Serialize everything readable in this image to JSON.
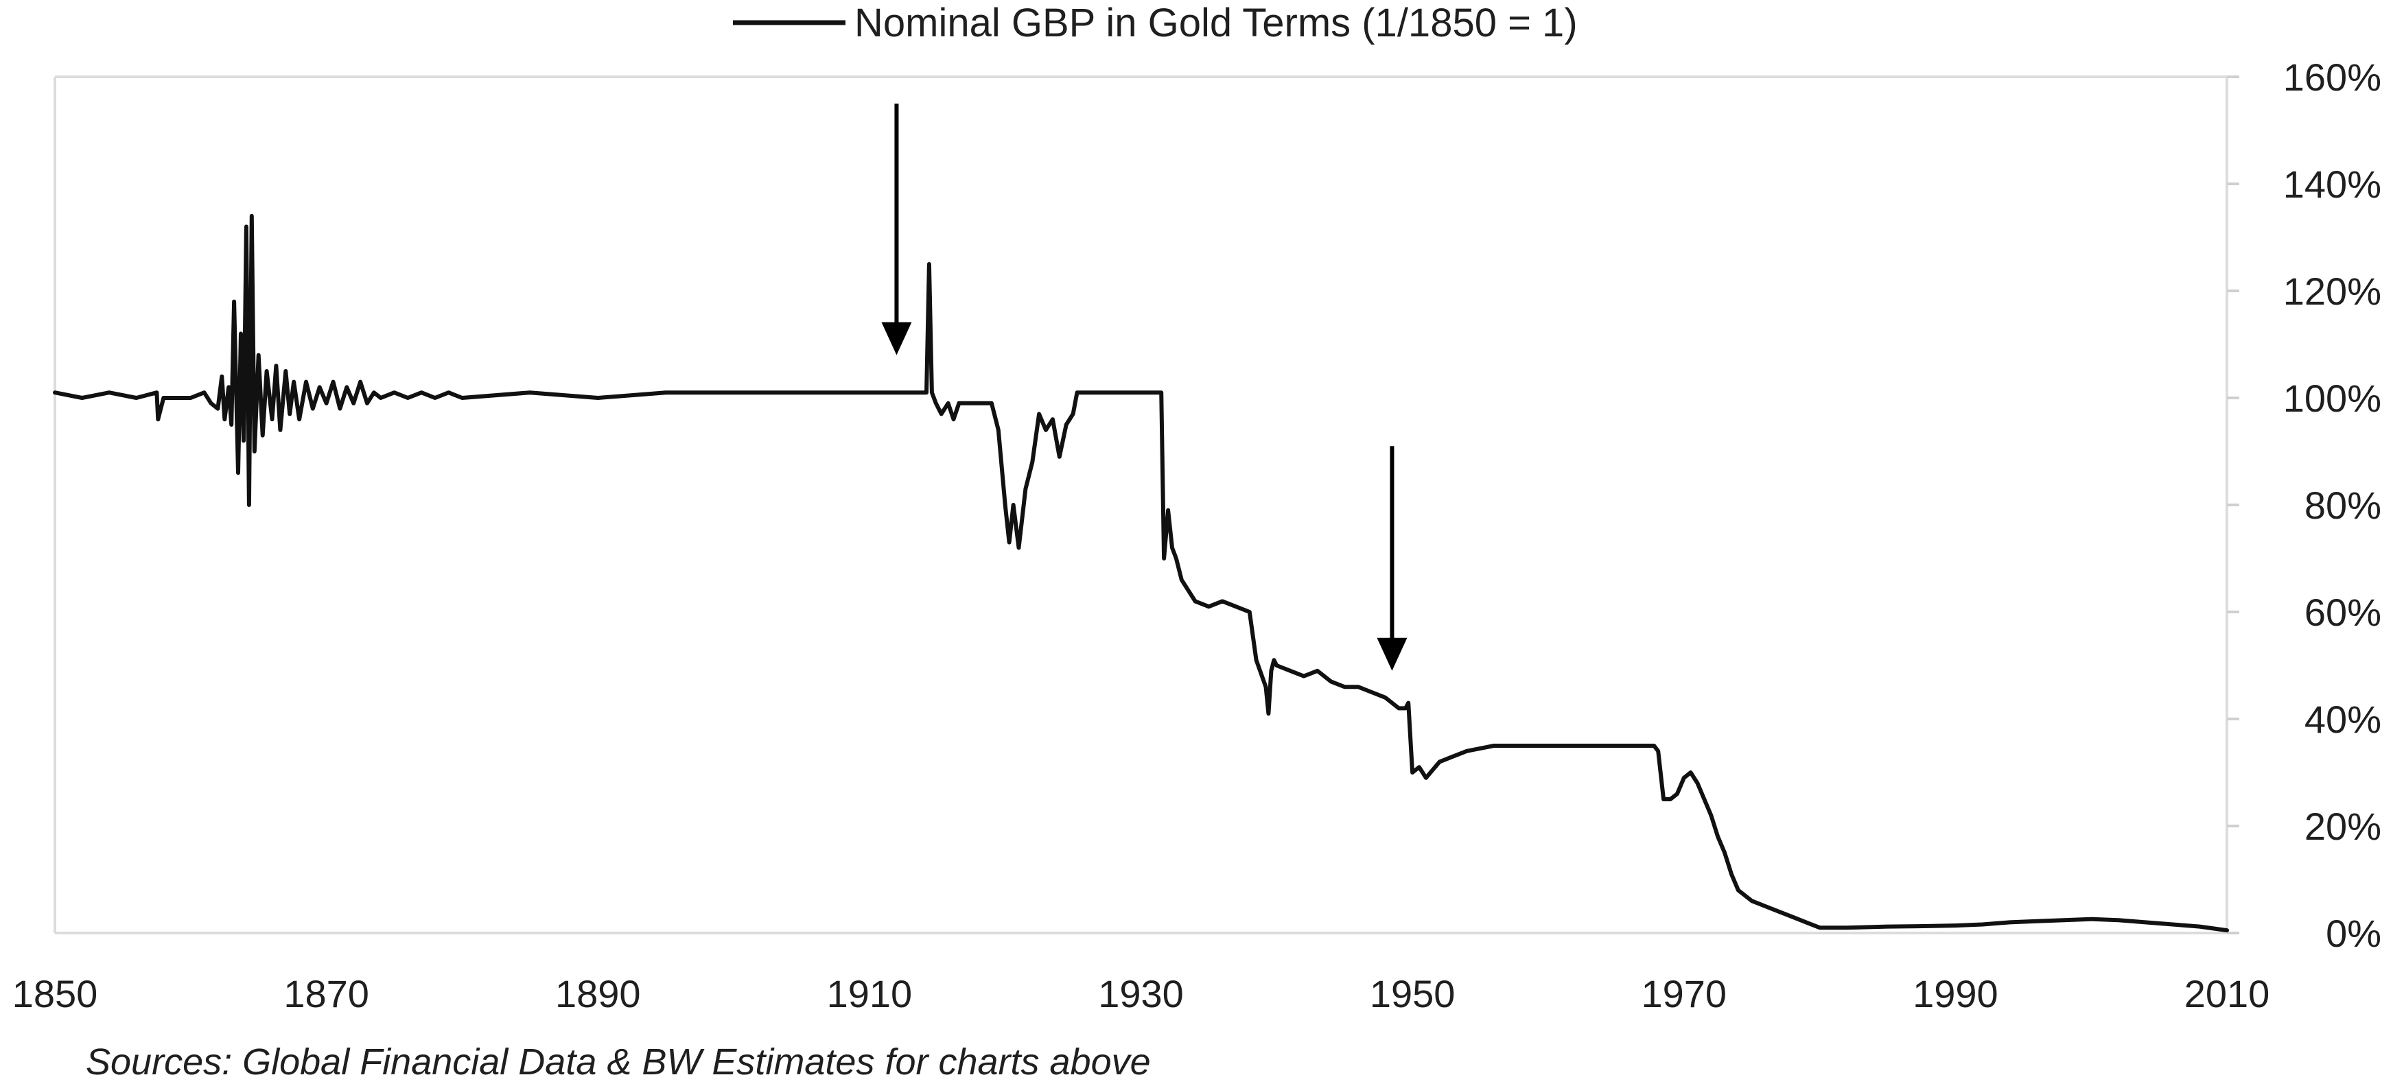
{
  "chart_data": {
    "type": "line",
    "title": "",
    "xlabel": "",
    "ylabel": "",
    "xlim": [
      1850,
      2010
    ],
    "ylim": [
      0,
      160
    ],
    "x_ticks": [
      1850,
      1870,
      1890,
      1910,
      1930,
      1950,
      1970,
      1990,
      2010
    ],
    "x_tick_labels": [
      "1850",
      "1870",
      "1890",
      "1910",
      "1930",
      "1950",
      "1970",
      "1990",
      "2010"
    ],
    "y_ticks": [
      0,
      20,
      40,
      60,
      80,
      100,
      120,
      140,
      160
    ],
    "y_tick_labels": [
      "0%",
      "20%",
      "40%",
      "60%",
      "80%",
      "100%",
      "120%",
      "140%",
      "160%"
    ],
    "y_axis_side": "right",
    "grid": false,
    "legend": {
      "position": "top-center",
      "entries": [
        "Nominal GBP in Gold Terms (1/1850 = 1)"
      ]
    },
    "series": [
      {
        "name": "Nominal GBP in Gold Terms (1/1850 = 1)",
        "color": "#111111",
        "x": [
          1850,
          1852,
          1854,
          1856,
          1857.5,
          1857.6,
          1858,
          1860,
          1861,
          1861.5,
          1862,
          1862.3,
          1862.5,
          1862.8,
          1863,
          1863.2,
          1863.5,
          1863.7,
          1863.9,
          1864.1,
          1864.3,
          1864.5,
          1864.7,
          1865,
          1865.3,
          1865.6,
          1866,
          1866.3,
          1866.6,
          1867,
          1867.3,
          1867.6,
          1868,
          1868.5,
          1869,
          1869.5,
          1870,
          1870.5,
          1871,
          1871.5,
          1872,
          1872.5,
          1873,
          1873.5,
          1874,
          1875,
          1876,
          1877,
          1878,
          1879,
          1880,
          1885,
          1890,
          1895,
          1900,
          1905,
          1910,
          1914.2,
          1914.4,
          1914.6,
          1914.9,
          1915.3,
          1915.8,
          1916.2,
          1916.6,
          1917,
          1918,
          1919,
          1919.5,
          1920,
          1920.3,
          1920.6,
          1921,
          1921.5,
          1922,
          1922.5,
          1923,
          1923.5,
          1924,
          1924.5,
          1925,
          1925.3,
          1926,
          1927,
          1928,
          1929,
          1930,
          1931.5,
          1931.7,
          1932,
          1932.3,
          1932.6,
          1933,
          1934,
          1935,
          1936,
          1937,
          1938,
          1938.5,
          1939.2,
          1939.4,
          1939.6,
          1939.8,
          1940,
          1941,
          1942,
          1943,
          1944,
          1945,
          1946,
          1947,
          1948,
          1949,
          1949.5,
          1949.7,
          1950,
          1950.5,
          1951,
          1952,
          1953,
          1954,
          1956,
          1958,
          1960,
          1962,
          1964,
          1966,
          1967.5,
          1967.8,
          1968.1,
          1968.5,
          1969,
          1969.5,
          1970,
          1970.5,
          1971,
          1971.5,
          1972,
          1972.5,
          1973,
          1973.5,
          1974,
          1975,
          1976,
          1977,
          1978,
          1979,
          1980,
          1982,
          1985,
          1988,
          1990,
          1992,
          1994,
          1996,
          1998,
          2000,
          2002,
          2004,
          2006,
          2008,
          2010
        ],
        "values": [
          101,
          100,
          101,
          100,
          101,
          96,
          100,
          100,
          101,
          99,
          98,
          104,
          96,
          102,
          95,
          118,
          86,
          112,
          92,
          132,
          80,
          134,
          90,
          108,
          93,
          105,
          96,
          106,
          94,
          105,
          97,
          103,
          96,
          103,
          98,
          102,
          99,
          103,
          98,
          102,
          99,
          103,
          99,
          101,
          100,
          101,
          100,
          101,
          100,
          101,
          100,
          101,
          100,
          101,
          101,
          101,
          101,
          101,
          125,
          101,
          99,
          97,
          99,
          96,
          99,
          99,
          99,
          99,
          94,
          80,
          73,
          80,
          72,
          83,
          88,
          97,
          94,
          96,
          89,
          95,
          97,
          101,
          101,
          101,
          101,
          101,
          101,
          101,
          70,
          79,
          72,
          70,
          66,
          62,
          61,
          62,
          61,
          60,
          51,
          46,
          41,
          49,
          51,
          50,
          49,
          48,
          49,
          47,
          46,
          46,
          45,
          44,
          42,
          42,
          43,
          30,
          31,
          29,
          32,
          33,
          34,
          35,
          35,
          35,
          35,
          35,
          35,
          35,
          35,
          34,
          25,
          25,
          26,
          29,
          30,
          28,
          25,
          22,
          18,
          15,
          11,
          8,
          6,
          5,
          4,
          3,
          2,
          1,
          1,
          1.2,
          1.3,
          1.4,
          1.6,
          2.0,
          2.2,
          2.4,
          2.6,
          2.4,
          2.0,
          1.6,
          1.2,
          0.5
        ]
      }
    ],
    "annotations": [
      {
        "type": "arrow",
        "x": 1912,
        "y_from": 155,
        "y_to": 108
      },
      {
        "type": "arrow",
        "x": 1948.5,
        "y_from": 91,
        "y_to": 49
      }
    ]
  },
  "source_note": "Sources: Global Financial Data & BW Estimates for charts above",
  "colors": {
    "line": "#111111",
    "frame": "#dcdcdc",
    "tick": "#cfcfcf",
    "text": "#1f1f1f",
    "background": "#ffffff"
  }
}
